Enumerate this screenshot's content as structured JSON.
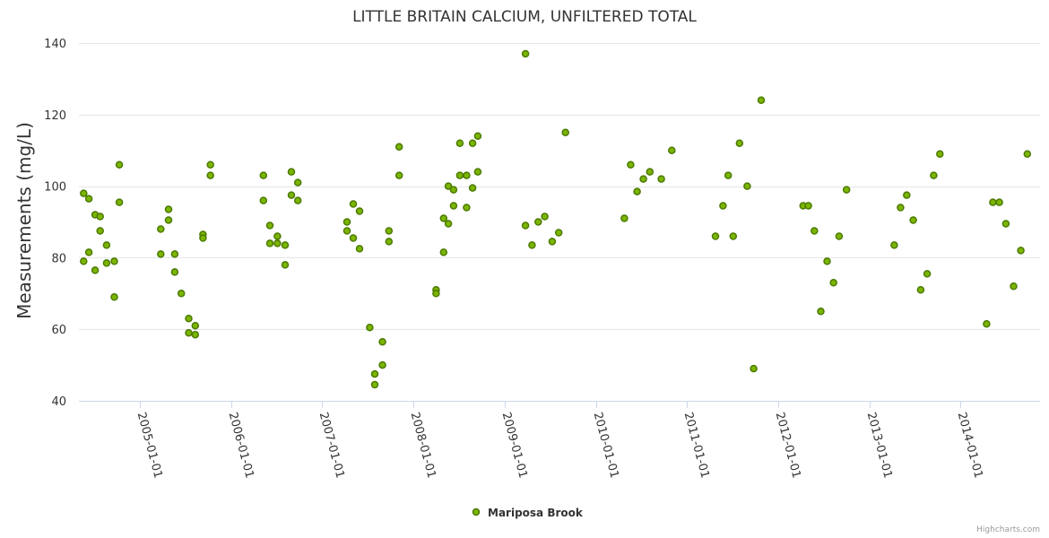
{
  "chart_data": {
    "type": "scatter",
    "title": "LITTLE BRITAIN CALCIUM, UNFILTERED TOTAL",
    "xlabel": "",
    "ylabel": "Measurements (mg/L)",
    "ylim": [
      40,
      140
    ],
    "yticks": [
      40,
      60,
      80,
      100,
      120,
      140
    ],
    "xrange": [
      "2004-05-01",
      "2014-11-15"
    ],
    "xticks": [
      "2005-01-01",
      "2006-01-01",
      "2007-01-01",
      "2008-01-01",
      "2009-01-01",
      "2010-01-01",
      "2011-01-01",
      "2012-01-01",
      "2013-01-01",
      "2014-01-01"
    ],
    "grid": true,
    "legend_position": "bottom-center",
    "colors": {
      "marker_fill": "#7cb500",
      "marker_stroke": "#4a7a00"
    },
    "series": [
      {
        "name": "Mariposa Brook",
        "points": [
          [
            "2004-05-20",
            98
          ],
          [
            "2004-05-20",
            79
          ],
          [
            "2004-06-10",
            96.5
          ],
          [
            "2004-06-10",
            81.5
          ],
          [
            "2004-07-05",
            92
          ],
          [
            "2004-07-05",
            76.5
          ],
          [
            "2004-07-25",
            91.5
          ],
          [
            "2004-07-25",
            87.5
          ],
          [
            "2004-08-20",
            83.5
          ],
          [
            "2004-08-20",
            78.5
          ],
          [
            "2004-09-20",
            79
          ],
          [
            "2004-09-20",
            69
          ],
          [
            "2004-10-10",
            106
          ],
          [
            "2004-10-10",
            95.5
          ],
          [
            "2005-03-25",
            88
          ],
          [
            "2005-03-25",
            81
          ],
          [
            "2005-04-25",
            93.5
          ],
          [
            "2005-04-25",
            90.5
          ],
          [
            "2005-05-20",
            81
          ],
          [
            "2005-05-20",
            76
          ],
          [
            "2005-06-15",
            70
          ],
          [
            "2005-07-15",
            63
          ],
          [
            "2005-07-15",
            59
          ],
          [
            "2005-08-10",
            61
          ],
          [
            "2005-08-10",
            58.5
          ],
          [
            "2005-09-10",
            86.5
          ],
          [
            "2005-09-10",
            85.5
          ],
          [
            "2005-10-10",
            106
          ],
          [
            "2005-10-10",
            103
          ],
          [
            "2006-05-10",
            103
          ],
          [
            "2006-05-10",
            96
          ],
          [
            "2006-06-05",
            89
          ],
          [
            "2006-06-05",
            84
          ],
          [
            "2006-07-05",
            86
          ],
          [
            "2006-07-05",
            84
          ],
          [
            "2006-08-05",
            83.5
          ],
          [
            "2006-08-05",
            78
          ],
          [
            "2006-08-30",
            104
          ],
          [
            "2006-08-30",
            97.5
          ],
          [
            "2006-09-25",
            101
          ],
          [
            "2006-09-25",
            96
          ],
          [
            "2007-04-10",
            90
          ],
          [
            "2007-04-10",
            87.5
          ],
          [
            "2007-05-05",
            95
          ],
          [
            "2007-05-05",
            85.5
          ],
          [
            "2007-05-30",
            93
          ],
          [
            "2007-05-30",
            82.5
          ],
          [
            "2007-07-10",
            60.5
          ],
          [
            "2007-07-30",
            47.5
          ],
          [
            "2007-07-30",
            44.5
          ],
          [
            "2007-08-30",
            56.5
          ],
          [
            "2007-08-30",
            50
          ],
          [
            "2007-09-25",
            87.5
          ],
          [
            "2007-09-25",
            84.5
          ],
          [
            "2007-11-05",
            111
          ],
          [
            "2007-11-05",
            103
          ],
          [
            "2008-04-01",
            71
          ],
          [
            "2008-04-01",
            70
          ],
          [
            "2008-05-01",
            91
          ],
          [
            "2008-05-01",
            81.5
          ],
          [
            "2008-05-20",
            100
          ],
          [
            "2008-05-20",
            89.5
          ],
          [
            "2008-06-10",
            99
          ],
          [
            "2008-06-10",
            94.5
          ],
          [
            "2008-07-05",
            112
          ],
          [
            "2008-07-05",
            103
          ],
          [
            "2008-08-01",
            103
          ],
          [
            "2008-08-01",
            94
          ],
          [
            "2008-08-25",
            112
          ],
          [
            "2008-08-25",
            99.5
          ],
          [
            "2008-09-15",
            114
          ],
          [
            "2008-09-15",
            104
          ],
          [
            "2009-03-25",
            137
          ],
          [
            "2009-03-25",
            89
          ],
          [
            "2009-04-20",
            83.5
          ],
          [
            "2009-05-15",
            90
          ],
          [
            "2009-06-10",
            91.5
          ],
          [
            "2009-07-10",
            84.5
          ],
          [
            "2009-08-05",
            87
          ],
          [
            "2009-09-01",
            115
          ],
          [
            "2010-04-25",
            91
          ],
          [
            "2010-05-20",
            106
          ],
          [
            "2010-06-15",
            98.5
          ],
          [
            "2010-07-10",
            102
          ],
          [
            "2010-08-05",
            104
          ],
          [
            "2010-09-20",
            102
          ],
          [
            "2010-11-01",
            110
          ],
          [
            "2011-04-25",
            86
          ],
          [
            "2011-05-25",
            94.5
          ],
          [
            "2011-06-15",
            103
          ],
          [
            "2011-07-05",
            86
          ],
          [
            "2011-07-30",
            112
          ],
          [
            "2011-08-30",
            100
          ],
          [
            "2011-09-25",
            49
          ],
          [
            "2011-10-25",
            124
          ],
          [
            "2012-04-10",
            94.5
          ],
          [
            "2012-05-01",
            94.5
          ],
          [
            "2012-05-25",
            87.5
          ],
          [
            "2012-06-20",
            65
          ],
          [
            "2012-07-15",
            79
          ],
          [
            "2012-08-10",
            73
          ],
          [
            "2012-09-01",
            86
          ],
          [
            "2012-10-01",
            99
          ],
          [
            "2013-04-10",
            83.5
          ],
          [
            "2013-05-05",
            94
          ],
          [
            "2013-05-30",
            97.5
          ],
          [
            "2013-06-25",
            90.5
          ],
          [
            "2013-07-25",
            71
          ],
          [
            "2013-08-20",
            75.5
          ],
          [
            "2013-09-15",
            103
          ],
          [
            "2013-10-10",
            109
          ],
          [
            "2014-04-15",
            61.5
          ],
          [
            "2014-05-10",
            95.5
          ],
          [
            "2014-06-05",
            95.5
          ],
          [
            "2014-07-01",
            89.5
          ],
          [
            "2014-08-01",
            72
          ],
          [
            "2014-08-30",
            82
          ],
          [
            "2014-09-25",
            109
          ]
        ]
      }
    ]
  },
  "credits": "Highcharts.com"
}
